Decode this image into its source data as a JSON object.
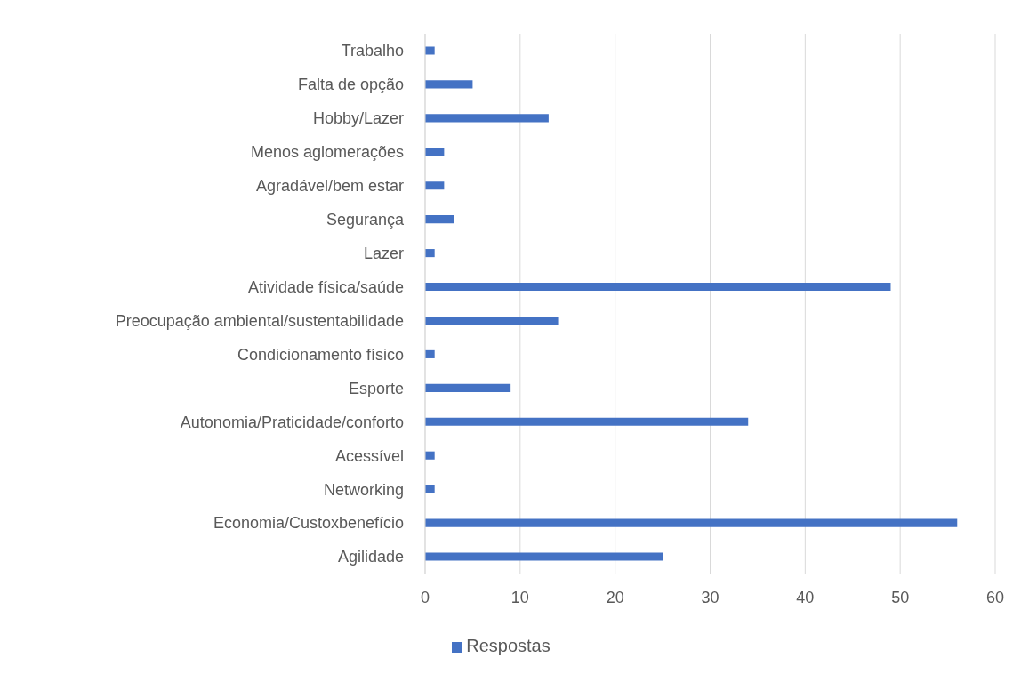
{
  "chart_data": {
    "type": "bar",
    "orientation": "horizontal",
    "categories": [
      "Trabalho",
      "Falta de opção",
      "Hobby/Lazer",
      "Menos aglomerações",
      "Agradável/bem estar",
      "Segurança",
      "Lazer",
      "Atividade física/saúde",
      "Preocupação ambiental/sustentabilidade",
      "Condicionamento físico",
      "Esporte",
      "Autonomia/Praticidade/conforto",
      "Acessível",
      "Networking",
      "Economia/Custoxbenefício",
      "Agilidade"
    ],
    "series": [
      {
        "name": "Respostas",
        "color": "#4472c4",
        "values": [
          1,
          5,
          13,
          2,
          2,
          3,
          1,
          49,
          14,
          1,
          9,
          34,
          1,
          1,
          56,
          25
        ]
      }
    ],
    "xlim": [
      0,
      60
    ],
    "xticks": [
      0,
      10,
      20,
      30,
      40,
      50,
      60
    ],
    "grid": "x",
    "legend": "bottom"
  }
}
